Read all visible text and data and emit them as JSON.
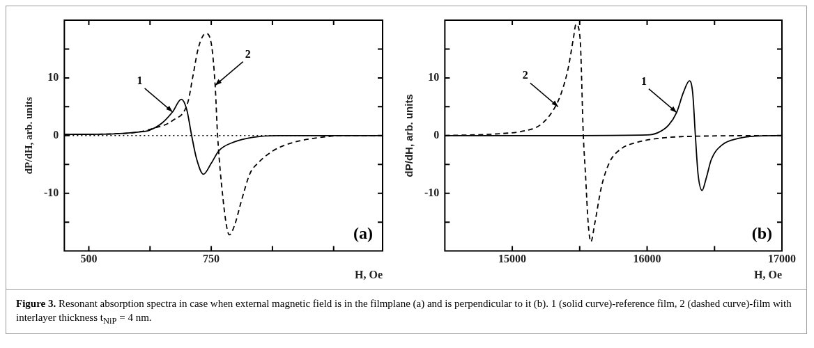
{
  "chart_data": [
    {
      "type": "line",
      "ylabel": "dP/dH, arb. units",
      "xlabel": "H, Oe",
      "xlim": [
        450,
        1100
      ],
      "xticks": [
        500,
        {
          "value": 625,
          "label": null
        },
        750,
        {
          "value": 875,
          "label": null
        },
        {
          "value": 1000,
          "label": null
        }
      ],
      "ylim": [
        -20,
        20
      ],
      "yticks": [
        {
          "value": -15,
          "label": null
        },
        -10,
        {
          "value": -5,
          "label": null
        },
        0,
        {
          "value": 5,
          "label": null
        },
        10,
        {
          "value": 15,
          "label": null
        }
      ],
      "grid": false,
      "legend": false,
      "marker": "none",
      "series": [
        {
          "color": "#000000",
          "line_style": "solid",
          "x": [
            450,
            550,
            600,
            623,
            650,
            671,
            689,
            700,
            710,
            720,
            734,
            750,
            766,
            797,
            834,
            887,
            950,
            1100
          ],
          "values": [
            0.2,
            0.3,
            0.6,
            0.9,
            2.2,
            4.1,
            6.3,
            4.5,
            0,
            -4,
            -6.7,
            -4.8,
            -2.6,
            -1.1,
            -0.3,
            0,
            0,
            0
          ]
        },
        {
          "color": "#000000",
          "line_style": "dashed",
          "x": [
            450,
            550,
            600,
            634,
            671,
            702,
            713,
            724,
            739,
            750,
            758,
            763,
            774,
            782,
            787,
            797,
            813,
            829,
            845,
            877,
            913,
            966,
            1020,
            1100
          ],
          "values": [
            0.2,
            0.3,
            0.6,
            1.3,
            2.6,
            5.7,
            10.5,
            15.3,
            17.7,
            16,
            8.7,
            0,
            -10.9,
            -16,
            -17.2,
            -15.7,
            -10.9,
            -6.6,
            -4.8,
            -2.6,
            -1.3,
            -0.4,
            0,
            0
          ]
        }
      ],
      "ref_lines": [
        {
          "axis": "y",
          "value": 0,
          "label": null,
          "color": "#000000",
          "line_style": "dotted"
        }
      ],
      "annotations": [
        {
          "text": "1",
          "x": 671,
          "y": 4.1
        },
        {
          "text": "2",
          "x": 758,
          "y": 8.7
        },
        "(a)"
      ]
    },
    {
      "type": "line",
      "ylabel": "dP/dH, arb. units",
      "xlabel": "H, Oe",
      "xlim": [
        14500,
        17000
      ],
      "xticks": [
        15000,
        {
          "value": 15500,
          "label": null
        },
        16000,
        {
          "value": 16500,
          "label": null
        },
        17000
      ],
      "ylim": [
        -20,
        20
      ],
      "yticks": [
        {
          "value": -15,
          "label": null
        },
        -10,
        {
          "value": -5,
          "label": null
        },
        0,
        {
          "value": 5,
          "label": null
        },
        10,
        {
          "value": 15,
          "label": null
        }
      ],
      "grid": false,
      "legend": false,
      "marker": "none",
      "series": [
        {
          "color": "#000000",
          "line_style": "solid",
          "x": [
            14500,
            15500,
            16000,
            16080,
            16159,
            16219,
            16268,
            16314,
            16338,
            16358,
            16378,
            16408,
            16437,
            16477,
            16557,
            16676,
            16800,
            17000
          ],
          "values": [
            0,
            0,
            0.1,
            0.5,
            1.8,
            4,
            7.4,
            9.5,
            7.4,
            0,
            -6.7,
            -9.5,
            -7.5,
            -4.1,
            -1.6,
            -0.5,
            -0.1,
            0
          ]
        },
        {
          "color": "#000000",
          "line_style": "dashed",
          "x": [
            14500,
            14887,
            15085,
            15205,
            15304,
            15364,
            15414,
            15453,
            15473,
            15503,
            15527,
            15543,
            15563,
            15583,
            15612,
            15662,
            15722,
            15801,
            15920,
            16080,
            16378,
            17000
          ],
          "values": [
            0,
            0.3,
            0.8,
            1.8,
            4.4,
            7.4,
            11.6,
            16.8,
            19.3,
            16.8,
            0,
            -6.7,
            -15.2,
            -18.4,
            -15.2,
            -8.8,
            -4.6,
            -2.4,
            -1.2,
            -0.5,
            -0.1,
            0
          ]
        }
      ],
      "annotations": [
        {
          "text": "2",
          "x": 15340,
          "y": 5
        },
        {
          "text": "1",
          "x": 16219,
          "y": 4
        },
        "(b)"
      ]
    },
    {
      "type": "other",
      "annotations": [
        "Figure 3.",
        "Resonant absorption spectra in case when external magnetic field is in the filmplane (a) and is perpendicular to it (b). 1 (solid curve)-reference film, 2 (dashed curve)-film with interlayer thickness t$_{NiP}$ = 4 nm."
      ]
    }
  ]
}
